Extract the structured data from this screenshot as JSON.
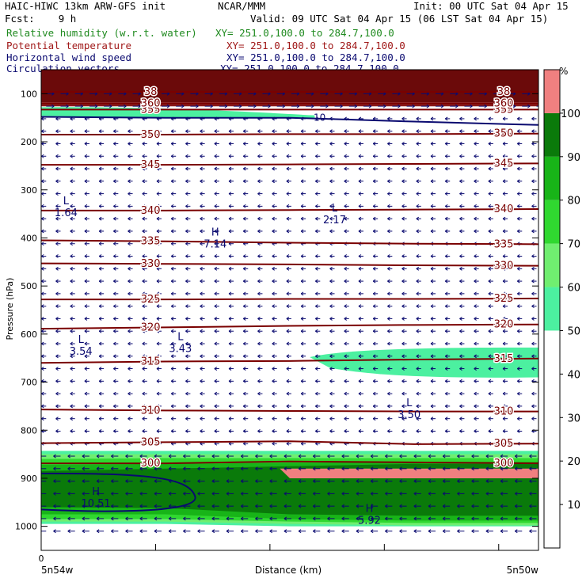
{
  "header": {
    "model": "HAIC-HIWC 13km ARW-GFS init",
    "center": "NCAR/MMM",
    "init": "Init: 00 UTC Sat 04 Apr 15",
    "fcst": "Fcst:    9 h",
    "valid": "Valid: 09 UTC Sat 04 Apr 15 (06 LST Sat 04 Apr 15)"
  },
  "legend": [
    {
      "name": "Relative humidity (w.r.t. water)",
      "xy": "XY= 251.0,100.0 to 284.7,100.0",
      "color": "#1f8a1f"
    },
    {
      "name": "Potential temperature",
      "xy": "XY= 251.0,100.0 to 284.7,100.0",
      "color": "#a01818"
    },
    {
      "name": "Horizontal wind speed",
      "xy": "XY= 251.0,100.0 to 284.7,100.0",
      "color": "#0a0a70"
    },
    {
      "name": "Circulation vectors",
      "xy": "XY= 251.0,100.0 to 284.7,100.0",
      "color": "#0a0a70"
    }
  ],
  "chart_data": {
    "type": "heatmap",
    "xlabel": "Distance (km)",
    "ylabel": "Pressure (hPa)",
    "x_ticks": [
      "0"
    ],
    "x_end_labels": [
      "5n54w",
      "5n50w"
    ],
    "y_ticks": [
      100,
      200,
      300,
      400,
      500,
      600,
      700,
      800,
      900,
      1000
    ],
    "ylim": [
      1050,
      50
    ],
    "colorbar": {
      "unit": "%",
      "ticks": [
        10,
        20,
        30,
        40,
        50,
        60,
        70,
        80,
        90,
        100
      ],
      "bands": [
        {
          "from": 50,
          "to": 60,
          "color": "#4cf0a0"
        },
        {
          "from": 60,
          "to": 70,
          "color": "#70ee70"
        },
        {
          "from": 70,
          "to": 80,
          "color": "#30d830"
        },
        {
          "from": 80,
          "to": 90,
          "color": "#18b418"
        },
        {
          "from": 90,
          "to": 100,
          "color": "#0a7a0a"
        },
        {
          "from": 100,
          "to": 110,
          "color": "#f08080"
        }
      ],
      "top_color": "#6b0a0a"
    },
    "theta_contours": [
      {
        "label": "300",
        "p": [
          869,
          869,
          865,
          867,
          869
        ]
      },
      {
        "label": "305",
        "p": [
          827,
          825,
          823,
          829,
          828
        ]
      },
      {
        "label": "310",
        "p": [
          757,
          759,
          760,
          761,
          761
        ]
      },
      {
        "label": "315",
        "p": [
          660,
          657,
          656,
          653,
          651
        ]
      },
      {
        "label": "320",
        "p": [
          589,
          586,
          583,
          581,
          580
        ]
      },
      {
        "label": "325",
        "p": [
          528,
          528,
          527,
          527,
          526
        ]
      },
      {
        "label": "330",
        "p": [
          453,
          454,
          455,
          457,
          458
        ]
      },
      {
        "label": "335",
        "p": [
          405,
          407,
          410,
          412,
          413
        ]
      },
      {
        "label": "340",
        "p": [
          343,
          343,
          342,
          341,
          340
        ]
      },
      {
        "label": "345",
        "p": [
          248,
          248,
          247,
          246,
          245
        ]
      },
      {
        "label": "350",
        "p": [
          185,
          185,
          184,
          184,
          183
        ]
      },
      {
        "label": "355",
        "p": [
          133,
          133,
          133,
          133,
          133
        ]
      },
      {
        "label": "360",
        "p": [
          120,
          120,
          120,
          120,
          120
        ]
      },
      {
        "label": "38",
        "p": [
          96,
          96,
          96,
          96,
          96
        ]
      }
    ],
    "wind_contours": [
      {
        "label": "10",
        "p": [
          148,
          150,
          150,
          158,
          165
        ]
      }
    ],
    "extrema": [
      {
        "kind": "L",
        "value": "1.64",
        "x": 0.05,
        "p": 330
      },
      {
        "kind": "L",
        "value": "2.17",
        "x": 0.59,
        "p": 345
      },
      {
        "kind": "H",
        "value": "7.14",
        "x": 0.35,
        "p": 395
      },
      {
        "kind": "L",
        "value": "3.54",
        "x": 0.08,
        "p": 618
      },
      {
        "kind": "L",
        "value": "3.43",
        "x": 0.28,
        "p": 613
      },
      {
        "kind": "L",
        "value": "3.50",
        "x": 0.74,
        "p": 750
      },
      {
        "kind": "H",
        "value": "10.51",
        "x": 0.11,
        "p": 935
      },
      {
        "kind": "H",
        "value": "5.92",
        "x": 0.66,
        "p": 970
      }
    ],
    "wind_arrows": "westward"
  }
}
